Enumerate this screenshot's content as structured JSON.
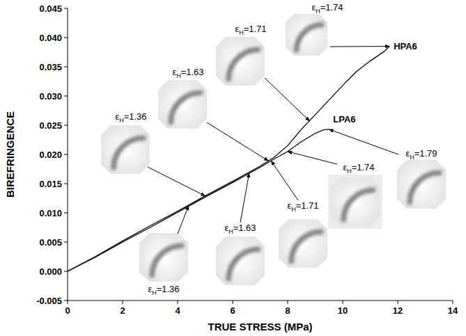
{
  "chart_data": {
    "type": "line",
    "x_label": "TRUE STRESS (MPa)",
    "y_label": "BIREFRINGENCE",
    "xlim": [
      0,
      14
    ],
    "xticks": [
      0,
      2,
      4,
      6,
      8,
      10,
      12,
      14
    ],
    "ylim": [
      -0.005,
      0.045
    ],
    "yticks": [
      -0.005,
      {
        "value": 0,
        "label": "0.000"
      },
      0.005,
      {
        "value": 0.01,
        "label": "0.010"
      },
      0.015,
      {
        "value": 0.02,
        "label": "0.020"
      },
      0.025,
      {
        "value": 0.03,
        "label": "0.030"
      },
      0.035,
      {
        "value": 0.04,
        "label": "0.040"
      },
      0.045
    ],
    "grid": false,
    "series": [
      {
        "name": "HPA6",
        "color": "#000000",
        "line_style": "solid",
        "x": [
          0,
          1,
          2,
          3,
          4,
          5,
          6,
          7,
          7.5,
          8,
          8.5,
          9,
          9.5,
          10,
          10.5,
          11,
          11.5,
          11.7
        ],
        "values": [
          0,
          0.0025,
          0.0052,
          0.0078,
          0.0103,
          0.0129,
          0.0154,
          0.018,
          0.0195,
          0.0215,
          0.0243,
          0.0268,
          0.0293,
          0.0318,
          0.0342,
          0.036,
          0.0376,
          0.0385
        ]
      },
      {
        "name": "LPA6",
        "color": "#000000",
        "line_style": "solid",
        "x": [
          0,
          1,
          2,
          3,
          4,
          5,
          6,
          7,
          7.5,
          8,
          8.5,
          9,
          9.3,
          9.5
        ],
        "values": [
          0,
          0.0024,
          0.005,
          0.0075,
          0.0101,
          0.0127,
          0.0152,
          0.0178,
          0.0192,
          0.0205,
          0.0222,
          0.0236,
          0.0242,
          0.0243
        ]
      }
    ],
    "annotations": [
      {
        "text": "εH=1.36",
        "x": 5.0,
        "y": 0.0129
      },
      {
        "text": "εH=1.63",
        "x": 7.3,
        "y": 0.0189
      },
      {
        "text": "εH=1.71",
        "x": 8.8,
        "y": 0.0257
      },
      {
        "text": "εH=1.74",
        "x": 11.7,
        "y": 0.0385
      },
      {
        "text": "εH=1.36",
        "x": 4.4,
        "y": 0.0112
      },
      {
        "text": "εH=1.63",
        "x": 6.6,
        "y": 0.0168
      },
      {
        "text": "εH=1.71",
        "x": 7.4,
        "y": 0.0189
      },
      {
        "text": "εH=1.74",
        "x": 8.0,
        "y": 0.0205
      },
      {
        "text": "εH=1.79",
        "x": 9.5,
        "y": 0.0243
      }
    ]
  }
}
